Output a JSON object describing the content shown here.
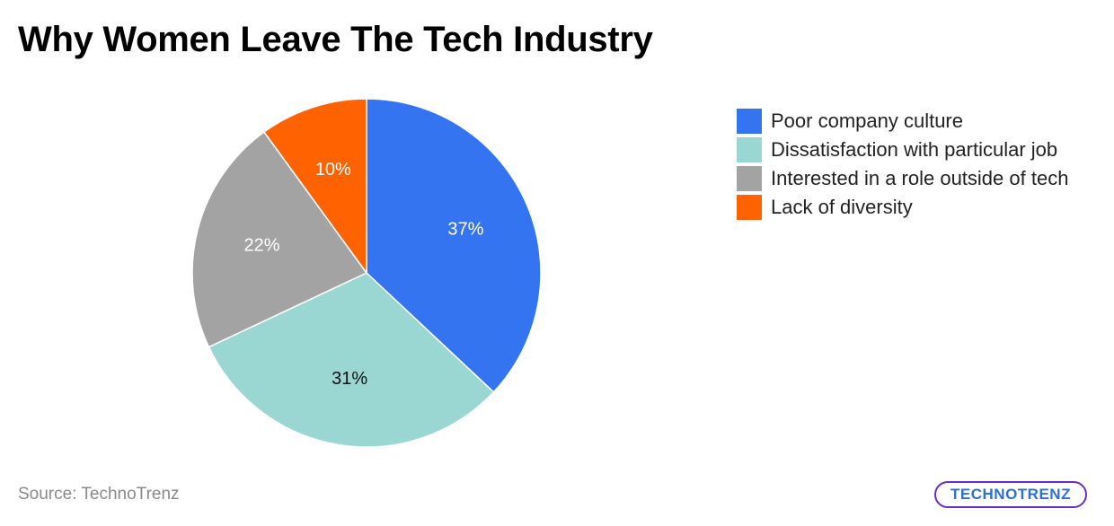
{
  "chart_data": {
    "type": "pie",
    "title": "Why Women Leave The Tech Industry",
    "slices": [
      {
        "label": "Poor company culture",
        "value": 37,
        "display": "37%",
        "color": "#3574f0",
        "label_color": "#ffffff"
      },
      {
        "label": "Dissatisfaction with particular job",
        "value": 31,
        "display": "31%",
        "color": "#9ad6d2",
        "label_color": "#111111"
      },
      {
        "label": "Interested in a role outside of tech",
        "value": 22,
        "display": "22%",
        "color": "#a3a3a3",
        "label_color": "#ffffff"
      },
      {
        "label": "Lack of diversity",
        "value": 10,
        "display": "10%",
        "color": "#ff6200",
        "label_color": "#ffffff"
      }
    ],
    "legend_position": "right"
  },
  "source": "Source: TechnoTrenz",
  "logo_text": "TECHNOTRENZ"
}
